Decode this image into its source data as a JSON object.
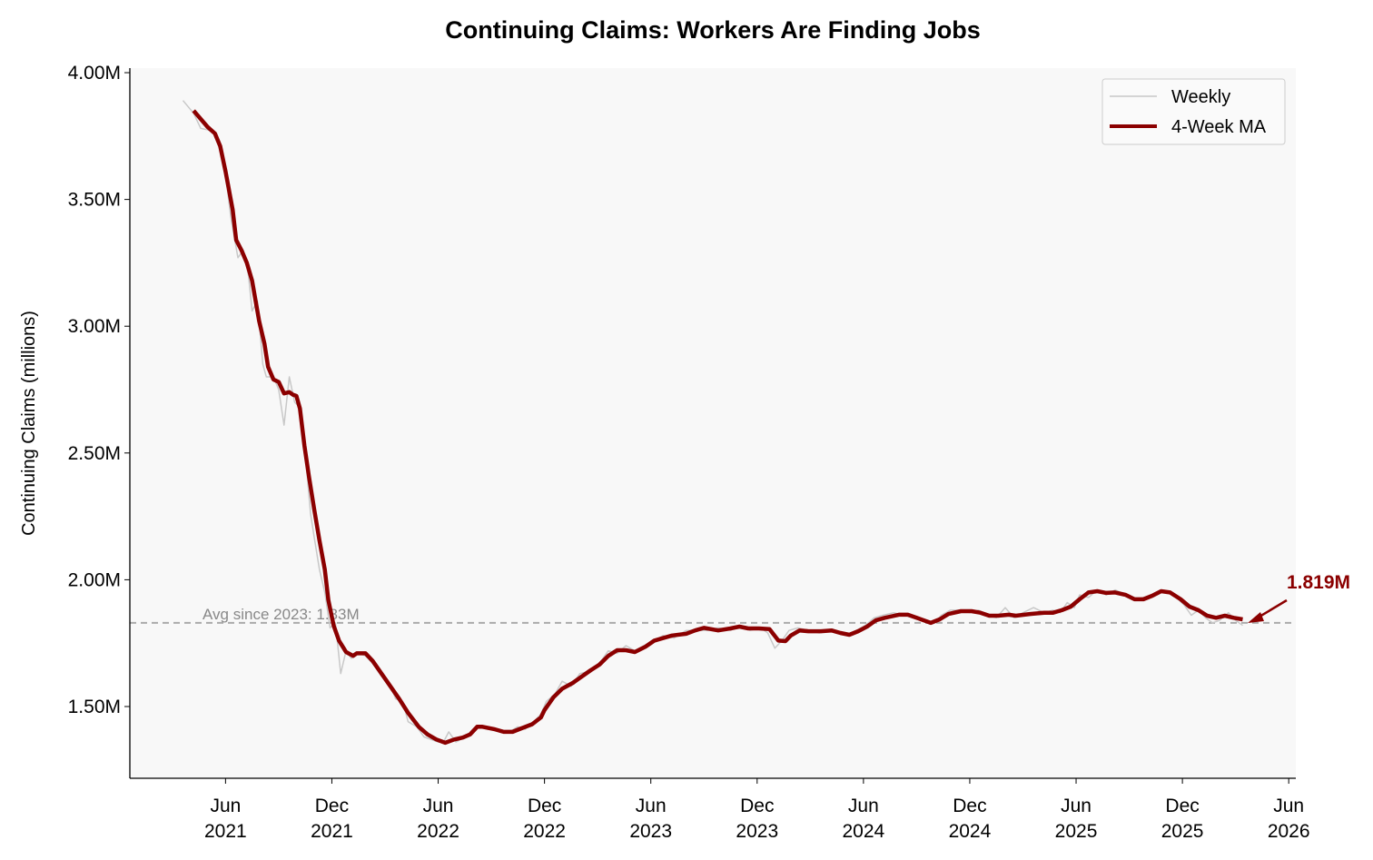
{
  "chart_data": {
    "type": "line",
    "title": "Continuing Claims: Workers Are Finding Jobs",
    "xlabel": "",
    "ylabel": "Continuing Claims (millions)",
    "x_unit": "months since Jan 2021",
    "xlim": [
      -0.4,
      65.4
    ],
    "ylim": [
      1.217,
      4.018
    ],
    "grid": false,
    "legend_position": "top-right",
    "y_ticks": [
      {
        "value": 1.5,
        "label": "1.50M"
      },
      {
        "value": 2.0,
        "label": "2.00M"
      },
      {
        "value": 2.5,
        "label": "2.50M"
      },
      {
        "value": 3.0,
        "label": "3.00M"
      },
      {
        "value": 3.5,
        "label": "3.50M"
      },
      {
        "value": 4.0,
        "label": "4.00M"
      }
    ],
    "x_ticks": [
      {
        "value": 5,
        "month": "Jun",
        "year": "2021"
      },
      {
        "value": 11,
        "month": "Dec",
        "year": "2021"
      },
      {
        "value": 17,
        "month": "Jun",
        "year": "2022"
      },
      {
        "value": 23,
        "month": "Dec",
        "year": "2022"
      },
      {
        "value": 29,
        "month": "Jun",
        "year": "2023"
      },
      {
        "value": 35,
        "month": "Dec",
        "year": "2023"
      },
      {
        "value": 41,
        "month": "Jun",
        "year": "2024"
      },
      {
        "value": 47,
        "month": "Dec",
        "year": "2024"
      },
      {
        "value": 53,
        "month": "Jun",
        "year": "2025"
      },
      {
        "value": 59,
        "month": "Dec",
        "year": "2025"
      },
      {
        "value": 65,
        "month": "Jun",
        "year": "2026"
      }
    ],
    "series": [
      {
        "name": "Weekly",
        "color": "#c8c8c8",
        "points": [
          [
            2.6,
            3.89
          ],
          [
            3.2,
            3.84
          ],
          [
            3.6,
            3.78
          ],
          [
            4.3,
            3.77
          ],
          [
            4.7,
            3.72
          ],
          [
            5.0,
            3.6
          ],
          [
            5.3,
            3.43
          ],
          [
            5.7,
            3.27
          ],
          [
            6.0,
            3.3
          ],
          [
            6.3,
            3.2
          ],
          [
            6.5,
            3.06
          ],
          [
            6.8,
            3.1
          ],
          [
            7.1,
            2.85
          ],
          [
            7.3,
            2.8
          ],
          [
            7.7,
            2.8
          ],
          [
            8.0,
            2.75
          ],
          [
            8.3,
            2.61
          ],
          [
            8.6,
            2.8
          ],
          [
            8.9,
            2.7
          ],
          [
            9.2,
            2.68
          ],
          [
            9.5,
            2.5
          ],
          [
            9.8,
            2.26
          ],
          [
            10.0,
            2.17
          ],
          [
            10.3,
            2.04
          ],
          [
            10.6,
            1.95
          ],
          [
            10.9,
            1.81
          ],
          [
            11.2,
            1.83
          ],
          [
            11.5,
            1.63
          ],
          [
            11.8,
            1.72
          ],
          [
            12.1,
            1.69
          ],
          [
            12.5,
            1.71
          ],
          [
            12.9,
            1.7
          ],
          [
            13.3,
            1.67
          ],
          [
            13.8,
            1.62
          ],
          [
            14.2,
            1.6
          ],
          [
            14.6,
            1.53
          ],
          [
            15.0,
            1.52
          ],
          [
            15.3,
            1.44
          ],
          [
            15.8,
            1.42
          ],
          [
            16.2,
            1.38
          ],
          [
            16.6,
            1.37
          ],
          [
            17.0,
            1.36
          ],
          [
            17.3,
            1.36
          ],
          [
            17.6,
            1.4
          ],
          [
            18.0,
            1.36
          ],
          [
            18.5,
            1.38
          ],
          [
            18.9,
            1.4
          ],
          [
            19.3,
            1.42
          ],
          [
            19.8,
            1.41
          ],
          [
            20.4,
            1.41
          ],
          [
            21.0,
            1.4
          ],
          [
            21.5,
            1.42
          ],
          [
            21.9,
            1.41
          ],
          [
            22.4,
            1.44
          ],
          [
            22.8,
            1.47
          ],
          [
            23.1,
            1.52
          ],
          [
            23.6,
            1.55
          ],
          [
            24.0,
            1.6
          ],
          [
            24.5,
            1.58
          ],
          [
            25.0,
            1.63
          ],
          [
            25.6,
            1.64
          ],
          [
            26.1,
            1.67
          ],
          [
            26.6,
            1.72
          ],
          [
            27.1,
            1.71
          ],
          [
            27.6,
            1.74
          ],
          [
            28.1,
            1.72
          ],
          [
            28.6,
            1.74
          ],
          [
            29.2,
            1.76
          ],
          [
            29.7,
            1.78
          ],
          [
            30.3,
            1.77
          ],
          [
            31.0,
            1.8
          ],
          [
            31.6,
            1.8
          ],
          [
            32.2,
            1.8
          ],
          [
            32.8,
            1.81
          ],
          [
            33.5,
            1.8
          ],
          [
            34.1,
            1.82
          ],
          [
            34.6,
            1.8
          ],
          [
            35.2,
            1.81
          ],
          [
            35.6,
            1.79
          ],
          [
            36.0,
            1.73
          ],
          [
            36.4,
            1.76
          ],
          [
            36.8,
            1.8
          ],
          [
            37.3,
            1.81
          ],
          [
            37.9,
            1.8
          ],
          [
            38.5,
            1.79
          ],
          [
            39.1,
            1.8
          ],
          [
            39.6,
            1.79
          ],
          [
            40.1,
            1.78
          ],
          [
            40.6,
            1.8
          ],
          [
            41.1,
            1.82
          ],
          [
            41.6,
            1.85
          ],
          [
            42.1,
            1.86
          ],
          [
            42.7,
            1.87
          ],
          [
            43.3,
            1.86
          ],
          [
            43.9,
            1.85
          ],
          [
            44.5,
            1.84
          ],
          [
            45.0,
            1.83
          ],
          [
            45.4,
            1.86
          ],
          [
            45.9,
            1.88
          ],
          [
            46.4,
            1.88
          ],
          [
            47.0,
            1.87
          ],
          [
            47.5,
            1.88
          ],
          [
            48.0,
            1.86
          ],
          [
            48.5,
            1.85
          ],
          [
            49.0,
            1.89
          ],
          [
            49.5,
            1.85
          ],
          [
            50.0,
            1.87
          ],
          [
            50.6,
            1.89
          ],
          [
            51.2,
            1.87
          ],
          [
            51.7,
            1.88
          ],
          [
            52.1,
            1.87
          ],
          [
            52.5,
            1.91
          ],
          [
            52.9,
            1.89
          ],
          [
            53.2,
            1.94
          ],
          [
            53.7,
            1.93
          ],
          [
            54.2,
            1.96
          ],
          [
            54.7,
            1.94
          ],
          [
            55.2,
            1.96
          ],
          [
            55.8,
            1.94
          ],
          [
            56.3,
            1.92
          ],
          [
            56.8,
            1.93
          ],
          [
            57.3,
            1.94
          ],
          [
            57.8,
            1.96
          ],
          [
            58.3,
            1.95
          ],
          [
            58.8,
            1.92
          ],
          [
            59.1,
            1.9
          ],
          [
            59.5,
            1.86
          ],
          [
            59.9,
            1.88
          ],
          [
            60.3,
            1.85
          ],
          [
            60.7,
            1.83
          ],
          [
            61.1,
            1.84
          ],
          [
            61.6,
            1.87
          ],
          [
            62.0,
            1.84
          ],
          [
            62.4,
            1.82
          ]
        ]
      },
      {
        "name": "4-Week MA",
        "color": "#8b0000",
        "points": [
          [
            3.2,
            3.85
          ],
          [
            4.0,
            3.785
          ],
          [
            4.4,
            3.76
          ],
          [
            4.7,
            3.71
          ],
          [
            5.0,
            3.61
          ],
          [
            5.4,
            3.46
          ],
          [
            5.6,
            3.34
          ],
          [
            5.9,
            3.3
          ],
          [
            6.2,
            3.25
          ],
          [
            6.5,
            3.18
          ],
          [
            6.9,
            3.02
          ],
          [
            7.2,
            2.93
          ],
          [
            7.4,
            2.84
          ],
          [
            7.7,
            2.79
          ],
          [
            8.0,
            2.78
          ],
          [
            8.3,
            2.735
          ],
          [
            8.6,
            2.74
          ],
          [
            8.8,
            2.73
          ],
          [
            9.0,
            2.725
          ],
          [
            9.2,
            2.675
          ],
          [
            9.45,
            2.53
          ],
          [
            9.7,
            2.41
          ],
          [
            10.0,
            2.28
          ],
          [
            10.3,
            2.155
          ],
          [
            10.6,
            2.04
          ],
          [
            10.8,
            1.92
          ],
          [
            11.1,
            1.82
          ],
          [
            11.4,
            1.76
          ],
          [
            11.8,
            1.715
          ],
          [
            12.2,
            1.7
          ],
          [
            12.4,
            1.71
          ],
          [
            12.9,
            1.71
          ],
          [
            13.3,
            1.68
          ],
          [
            13.8,
            1.63
          ],
          [
            14.3,
            1.58
          ],
          [
            14.8,
            1.53
          ],
          [
            15.3,
            1.475
          ],
          [
            15.9,
            1.42
          ],
          [
            16.4,
            1.39
          ],
          [
            16.9,
            1.37
          ],
          [
            17.4,
            1.357
          ],
          [
            17.9,
            1.37
          ],
          [
            18.4,
            1.378
          ],
          [
            18.8,
            1.39
          ],
          [
            19.2,
            1.42
          ],
          [
            19.5,
            1.42
          ],
          [
            20.2,
            1.41
          ],
          [
            20.7,
            1.4
          ],
          [
            21.2,
            1.4
          ],
          [
            21.7,
            1.414
          ],
          [
            22.3,
            1.43
          ],
          [
            22.8,
            1.457
          ],
          [
            23.0,
            1.486
          ],
          [
            23.5,
            1.536
          ],
          [
            24.0,
            1.57
          ],
          [
            24.6,
            1.593
          ],
          [
            25.1,
            1.618
          ],
          [
            25.6,
            1.643
          ],
          [
            26.1,
            1.665
          ],
          [
            26.6,
            1.7
          ],
          [
            27.1,
            1.722
          ],
          [
            27.6,
            1.722
          ],
          [
            28.1,
            1.715
          ],
          [
            28.7,
            1.736
          ],
          [
            29.2,
            1.76
          ],
          [
            29.7,
            1.77
          ],
          [
            30.2,
            1.78
          ],
          [
            31.0,
            1.787
          ],
          [
            31.5,
            1.8
          ],
          [
            32.0,
            1.81
          ],
          [
            32.8,
            1.8
          ],
          [
            33.5,
            1.808
          ],
          [
            34.0,
            1.815
          ],
          [
            34.5,
            1.808
          ],
          [
            35.1,
            1.808
          ],
          [
            35.7,
            1.805
          ],
          [
            36.2,
            1.76
          ],
          [
            36.6,
            1.758
          ],
          [
            36.9,
            1.78
          ],
          [
            37.4,
            1.8
          ],
          [
            37.9,
            1.797
          ],
          [
            38.6,
            1.797
          ],
          [
            39.2,
            1.8
          ],
          [
            39.7,
            1.79
          ],
          [
            40.2,
            1.783
          ],
          [
            40.7,
            1.797
          ],
          [
            41.2,
            1.815
          ],
          [
            41.7,
            1.84
          ],
          [
            42.2,
            1.85
          ],
          [
            43.0,
            1.862
          ],
          [
            43.5,
            1.862
          ],
          [
            44.0,
            1.85
          ],
          [
            44.8,
            1.83
          ],
          [
            45.3,
            1.844
          ],
          [
            45.8,
            1.865
          ],
          [
            46.5,
            1.876
          ],
          [
            47.1,
            1.876
          ],
          [
            47.6,
            1.87
          ],
          [
            48.1,
            1.858
          ],
          [
            48.6,
            1.858
          ],
          [
            49.2,
            1.862
          ],
          [
            49.6,
            1.858
          ],
          [
            50.4,
            1.865
          ],
          [
            51.2,
            1.87
          ],
          [
            51.7,
            1.87
          ],
          [
            52.2,
            1.88
          ],
          [
            52.7,
            1.894
          ],
          [
            53.2,
            1.923
          ],
          [
            53.7,
            1.95
          ],
          [
            54.2,
            1.955
          ],
          [
            54.7,
            1.948
          ],
          [
            55.2,
            1.95
          ],
          [
            55.8,
            1.94
          ],
          [
            56.3,
            1.923
          ],
          [
            56.8,
            1.923
          ],
          [
            57.3,
            1.937
          ],
          [
            57.8,
            1.955
          ],
          [
            58.3,
            1.95
          ],
          [
            58.9,
            1.923
          ],
          [
            59.4,
            1.894
          ],
          [
            59.9,
            1.88
          ],
          [
            60.4,
            1.858
          ],
          [
            60.9,
            1.85
          ],
          [
            61.4,
            1.858
          ],
          [
            61.9,
            1.85
          ],
          [
            62.4,
            1.844
          ]
        ]
      }
    ],
    "reference_line": {
      "value": 1.83,
      "label": "Avg since 2023: 1.83M",
      "color": "#aaaaaa"
    },
    "annotation": {
      "text": "1.819M",
      "value": 1.819,
      "color": "#8b0000"
    },
    "legend": [
      {
        "label": "Weekly",
        "color": "#c8c8c8"
      },
      {
        "label": "4-Week MA",
        "color": "#8b0000"
      }
    ]
  }
}
